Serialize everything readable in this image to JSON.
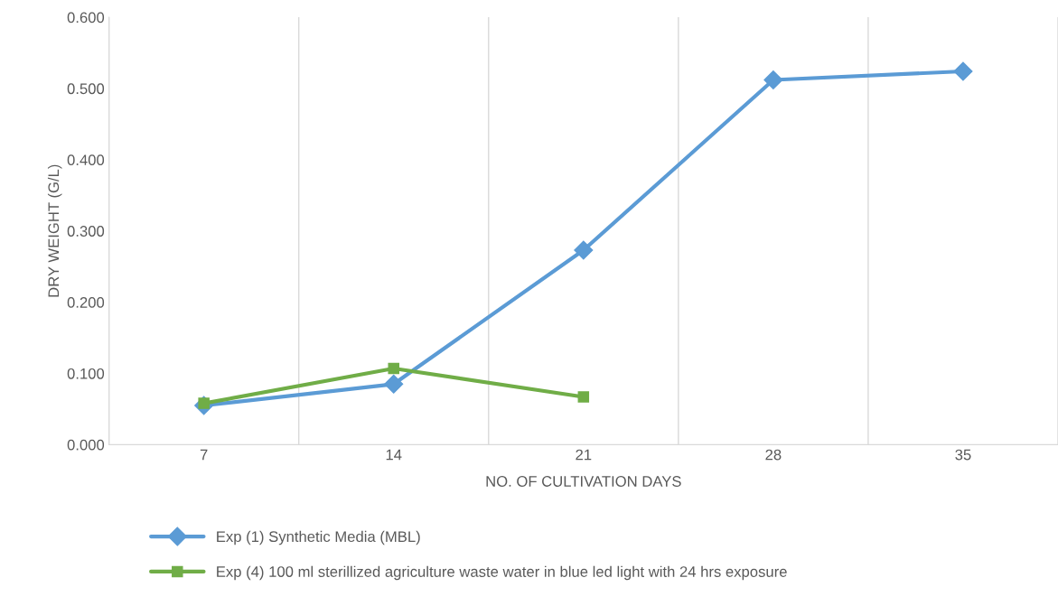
{
  "chart_data": {
    "type": "line",
    "xlabel": "NO. OF CULTIVATION DAYS",
    "ylabel": "DRY WEIGHT (G/L)",
    "categories": [
      "7",
      "14",
      "21",
      "28",
      "35"
    ],
    "series": [
      {
        "name": "Exp (1) Synthetic Media (MBL)",
        "color": "#5b9bd5",
        "marker": "diamond",
        "values": [
          0.055,
          0.085,
          0.273,
          0.512,
          0.524
        ]
      },
      {
        "name": "Exp (4) 100 ml sterillized agriculture waste water in blue led light with 24 hrs exposure",
        "color": "#70ad47",
        "marker": "square",
        "values": [
          0.058,
          0.107,
          0.067,
          null,
          null
        ]
      }
    ],
    "ylim": [
      0,
      0.6
    ],
    "yticks": [
      {
        "value": 0,
        "label": "0.000"
      },
      {
        "value": 0.1,
        "label": "0.100"
      },
      {
        "value": 0.2,
        "label": "0.200"
      },
      {
        "value": 0.3,
        "label": "0.300"
      },
      {
        "value": 0.4,
        "label": "0.400"
      },
      {
        "value": 0.5,
        "label": "0.500"
      },
      {
        "value": 0.6,
        "label": "0.600"
      }
    ],
    "grid": "x",
    "legend": "bottom",
    "line_style": "solid"
  }
}
